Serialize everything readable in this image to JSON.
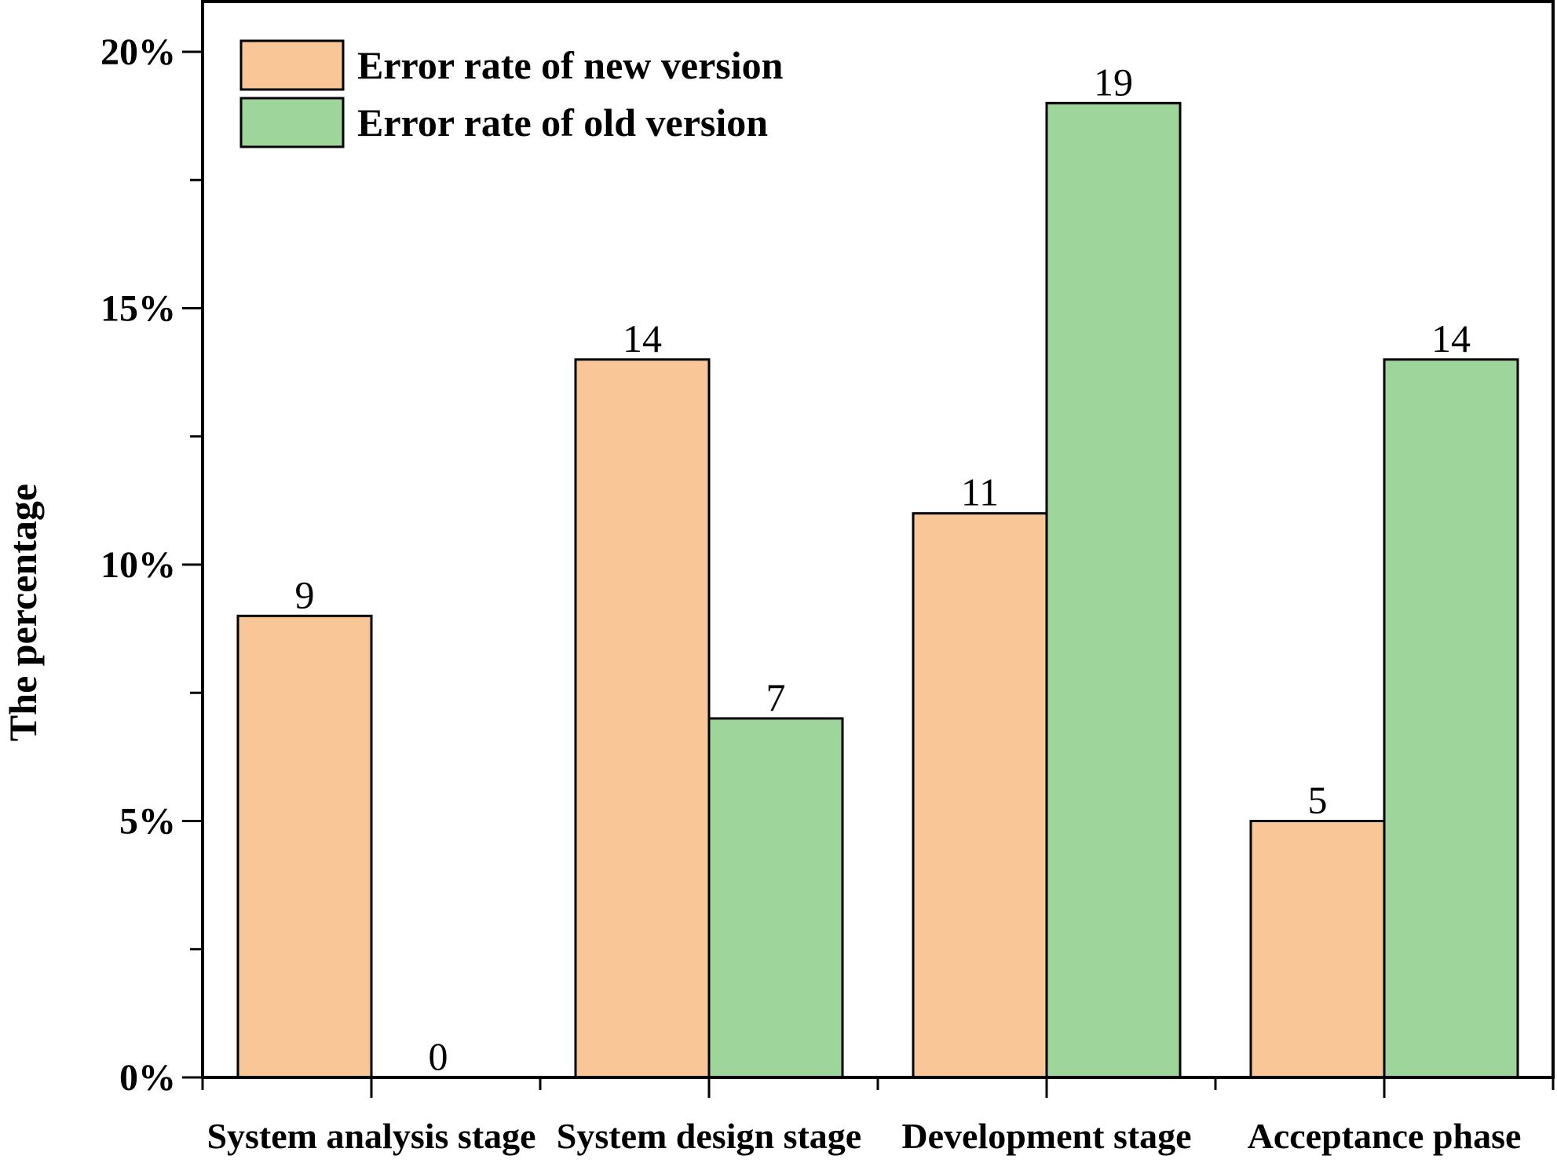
{
  "chart_data": {
    "type": "bar",
    "categories": [
      "System analysis stage",
      "System design stage",
      "Development stage",
      "Acceptance phase"
    ],
    "series": [
      {
        "name": "Error rate of new version",
        "values": [
          9,
          14,
          11,
          5
        ],
        "color": "#f9c797"
      },
      {
        "name": "Error rate of old version",
        "values": [
          0,
          7,
          19,
          14
        ],
        "color": "#9ed59a"
      }
    ],
    "ylabel": "The percentage",
    "ylim": [
      0,
      20
    ],
    "yticks": [
      0,
      5,
      10,
      15,
      20
    ],
    "ytick_labels": [
      "0%",
      "5%",
      "10%",
      "15%",
      "20%"
    ],
    "grid": false,
    "legend_position": "top-left",
    "data_labels": true
  }
}
